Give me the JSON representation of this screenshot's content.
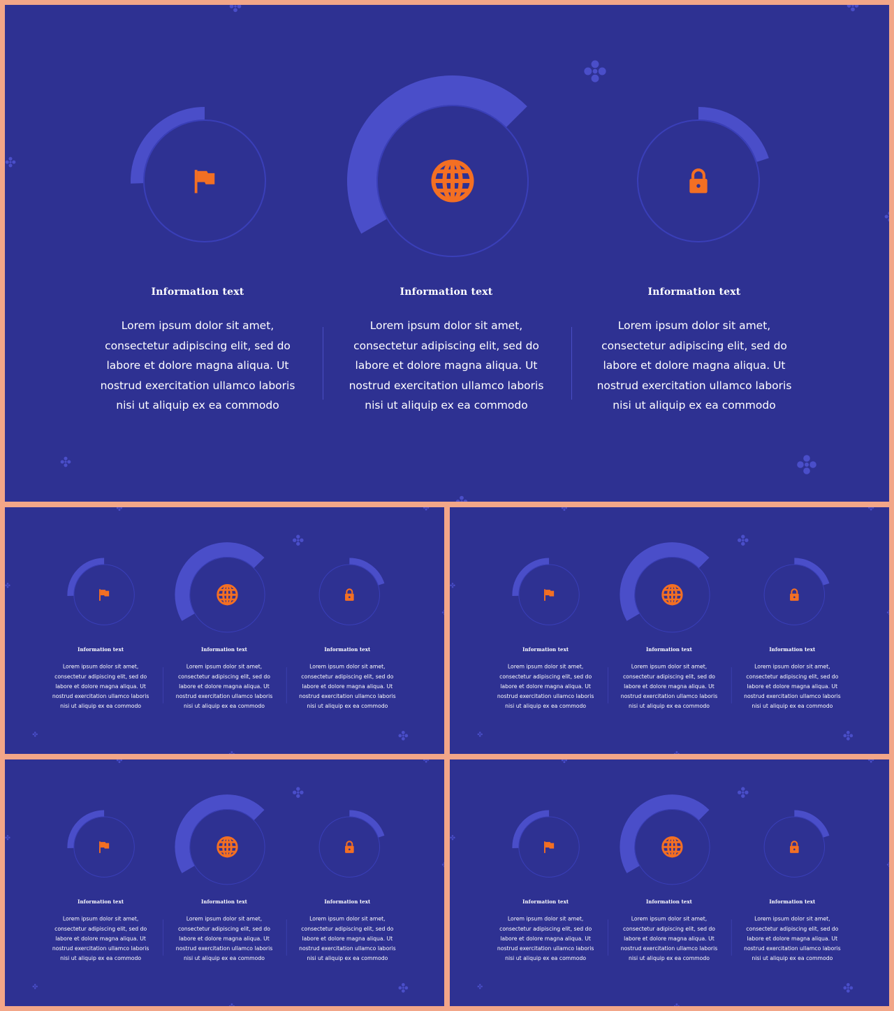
{
  "colors": {
    "frame": "#f2a688",
    "slide_bg": "#2e3192",
    "ring_accent": "#4a4ec9",
    "ring_track": "#3a3fb8",
    "icon": "#f36f23",
    "text": "#ffffff"
  },
  "slides": [
    {
      "columns": [
        {
          "icon": "flag-icon",
          "title": "Information text",
          "body": "Lorem ipsum dolor sit amet, consectetur adipiscing elit, sed do labore et dolore magna aliqua. Ut nostrud exercitation ullamco laboris nisi ut aliquip ex ea commodo"
        },
        {
          "icon": "globe-icon",
          "title": "Information text",
          "body": "Lorem ipsum dolor sit amet, consectetur adipiscing elit, sed do labore et dolore magna aliqua. Ut nostrud exercitation ullamco laboris nisi ut aliquip ex ea commodo"
        },
        {
          "icon": "lock-icon",
          "title": "Information text",
          "body": "Lorem ipsum dolor sit amet, consectetur adipiscing elit, sed do labore et dolore magna aliqua. Ut nostrud exercitation ullamco laboris nisi ut aliquip ex ea commodo"
        }
      ]
    },
    {
      "columns": [
        {
          "icon": "flag-icon",
          "title": "Information text",
          "body": "Lorem ipsum dolor sit amet, consectetur adipiscing elit, sed do labore et dolore magna aliqua. Ut nostrud exercitation ullamco laboris nisi ut aliquip ex ea commodo"
        },
        {
          "icon": "globe-icon",
          "title": "Information text",
          "body": "Lorem ipsum dolor sit amet, consectetur adipiscing elit, sed do labore et dolore magna aliqua. Ut nostrud exercitation ullamco laboris nisi ut aliquip ex ea commodo"
        },
        {
          "icon": "lock-icon",
          "title": "Information text",
          "body": "Lorem ipsum dolor sit amet, consectetur adipiscing elit, sed do labore et dolore magna aliqua. Ut nostrud exercitation ullamco laboris nisi ut aliquip ex ea commodo"
        }
      ]
    },
    {
      "columns": [
        {
          "icon": "flag-icon",
          "title": "Information text",
          "body": "Lorem ipsum dolor sit amet, consectetur adipiscing elit, sed do labore et dolore magna aliqua. Ut nostrud exercitation ullamco laboris nisi ut aliquip ex ea commodo"
        },
        {
          "icon": "globe-icon",
          "title": "Information text",
          "body": "Lorem ipsum dolor sit amet, consectetur adipiscing elit, sed do labore et dolore magna aliqua. Ut nostrud exercitation ullamco laboris nisi ut aliquip ex ea commodo"
        },
        {
          "icon": "lock-icon",
          "title": "Information text",
          "body": "Lorem ipsum dolor sit amet, consectetur adipiscing elit, sed do labore et dolore magna aliqua. Ut nostrud exercitation ullamco laboris nisi ut aliquip ex ea commodo"
        }
      ]
    },
    {
      "columns": [
        {
          "icon": "flag-icon",
          "title": "Information text",
          "body": "Lorem ipsum dolor sit amet, consectetur adipiscing elit, sed do labore et dolore magna aliqua. Ut nostrud exercitation ullamco laboris nisi ut aliquip ex ea commodo"
        },
        {
          "icon": "globe-icon",
          "title": "Information text",
          "body": "Lorem ipsum dolor sit amet, consectetur adipiscing elit, sed do labore et dolore magna aliqua. Ut nostrud exercitation ullamco laboris nisi ut aliquip ex ea commodo"
        },
        {
          "icon": "lock-icon",
          "title": "Information text",
          "body": "Lorem ipsum dolor sit amet, consectetur adipiscing elit, sed do labore et dolore magna aliqua. Ut nostrud exercitation ullamco laboris nisi ut aliquip ex ea commodo"
        }
      ]
    },
    {
      "columns": [
        {
          "icon": "flag-icon",
          "title": "Information text",
          "body": "Lorem ipsum dolor sit amet, consectetur adipiscing elit, sed do labore et dolore magna aliqua. Ut nostrud exercitation ullamco laboris nisi ut aliquip ex ea commodo"
        },
        {
          "icon": "globe-icon",
          "title": "Information text",
          "body": "Lorem ipsum dolor sit amet, consectetur adipiscing elit, sed do labore et dolore magna aliqua. Ut nostrud exercitation ullamco laboris nisi ut aliquip ex ea commodo"
        },
        {
          "icon": "lock-icon",
          "title": "Information text",
          "body": "Lorem ipsum dolor sit amet, consectetur adipiscing elit, sed do labore et dolore magna aliqua. Ut nostrud exercitation ullamco laboris nisi ut aliquip ex ea commodo"
        }
      ]
    }
  ]
}
